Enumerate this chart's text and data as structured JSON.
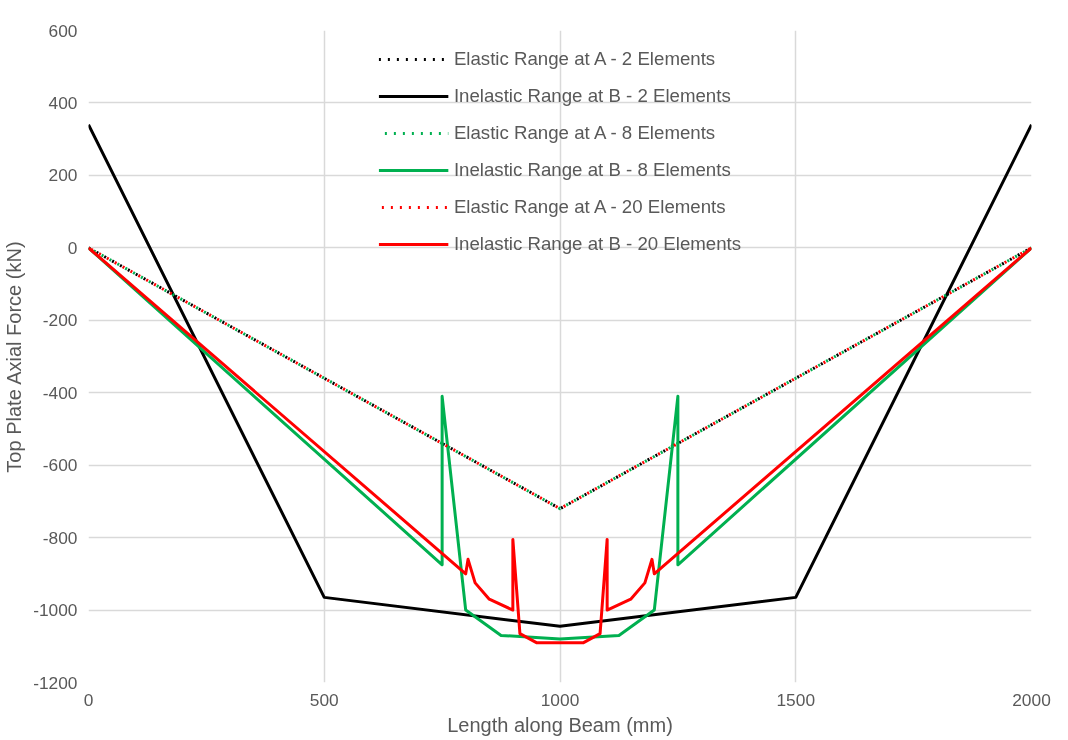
{
  "chart_data": {
    "type": "line",
    "xlabel": "Length along Beam (mm)",
    "ylabel": "Top Plate Axial Force (kN)",
    "xlim": [
      0,
      2000
    ],
    "xticks": [
      0,
      500,
      1000,
      1500,
      2000
    ],
    "ylim": [
      -1200,
      600
    ],
    "yticks": [
      -1200,
      -1000,
      -800,
      -600,
      -400,
      -200,
      0,
      200,
      400,
      600
    ],
    "grid": true,
    "legend": "top",
    "marker": "none",
    "series": [
      {
        "name": "Elastic Range at A - 2 Elements",
        "color": "#000000",
        "line_style": "dotted",
        "x": [
          0,
          1000,
          2000
        ],
        "values": [
          0,
          -720,
          0
        ]
      },
      {
        "name": "Inelastic Range at B - 2 Elements",
        "color": "#000000",
        "line_style": "solid",
        "x": [
          0,
          500,
          1000,
          1500,
          2000
        ],
        "values": [
          340,
          -965,
          -1045,
          -965,
          340
        ]
      },
      {
        "name": "Elastic Range at A - 8 Elements",
        "color": "#00b050",
        "line_style": "dotted",
        "x": [
          0,
          250,
          500,
          750,
          1000,
          1250,
          1500,
          1750,
          2000
        ],
        "values": [
          0,
          -180,
          -360,
          -540,
          -720,
          -540,
          -360,
          -180,
          0
        ]
      },
      {
        "name": "Inelastic Range at B - 8 Elements",
        "color": "#00b050",
        "line_style": "solid",
        "x": [
          0,
          750,
          750,
          800,
          875,
          1000,
          1125,
          1200,
          1250,
          1250,
          2000
        ],
        "values": [
          0,
          -875,
          -410,
          -1000,
          -1070,
          -1080,
          -1070,
          -1000,
          -410,
          -875,
          0
        ]
      },
      {
        "name": "Elastic Range at A - 20 Elements",
        "color": "#ff0000",
        "line_style": "dotted",
        "x": [
          0,
          100,
          200,
          300,
          400,
          500,
          600,
          700,
          800,
          900,
          1000,
          1100,
          1200,
          1300,
          1400,
          1500,
          1600,
          1700,
          1800,
          1900,
          2000
        ],
        "values": [
          0,
          -72,
          -144,
          -216,
          -288,
          -360,
          -432,
          -504,
          -576,
          -648,
          -720,
          -648,
          -576,
          -504,
          -432,
          -360,
          -288,
          -216,
          -144,
          -72,
          0
        ]
      },
      {
        "name": "Inelastic Range at B - 20 Elements",
        "color": "#ff0000",
        "line_style": "solid",
        "x": [
          0,
          800,
          805,
          820,
          850,
          900,
          900,
          915,
          950,
          1050,
          1085,
          1100,
          1100,
          1150,
          1180,
          1195,
          1200,
          2000
        ],
        "values": [
          0,
          -900,
          -860,
          -925,
          -970,
          -1000,
          -805,
          -1065,
          -1090,
          -1090,
          -1065,
          -805,
          -1000,
          -970,
          -925,
          -860,
          -900,
          0
        ]
      }
    ]
  }
}
